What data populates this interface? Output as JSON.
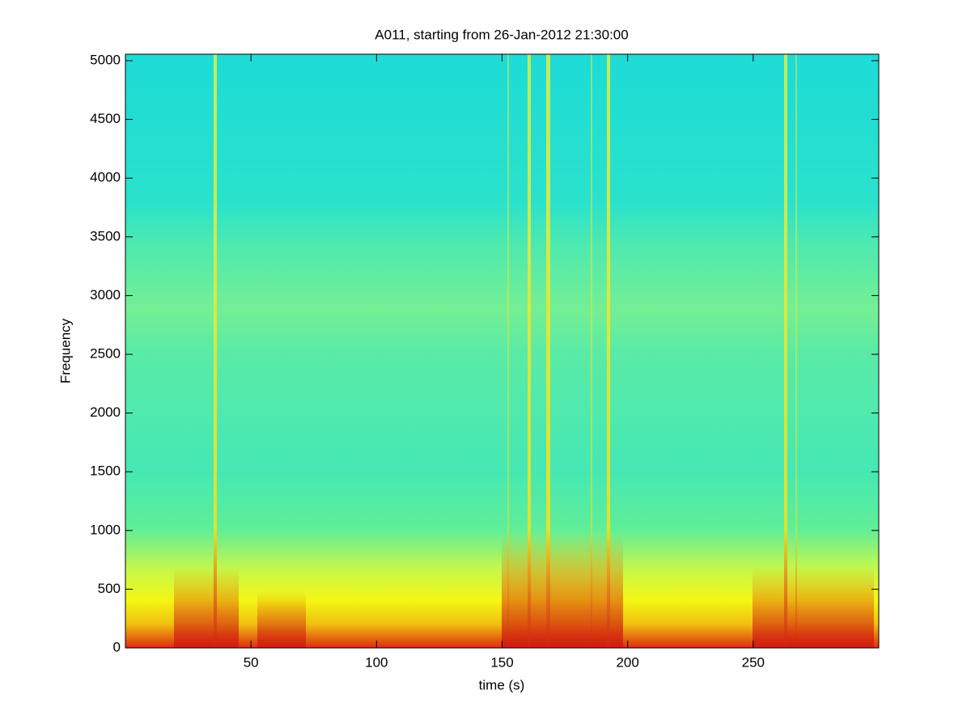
{
  "chart_data": {
    "type": "spectrogram",
    "title": "A011, starting from 26-Jan-2012 21:30:00",
    "x_label": "time (s)",
    "y_label": "Frequency",
    "xlim": [
      0,
      300
    ],
    "xticks": [
      50,
      100,
      150,
      200,
      250
    ],
    "ylim": [
      0,
      5055
    ],
    "yticks": [
      0,
      500,
      1000,
      1500,
      2000,
      2500,
      3000,
      3500,
      4000,
      4500,
      5000
    ]
  }
}
